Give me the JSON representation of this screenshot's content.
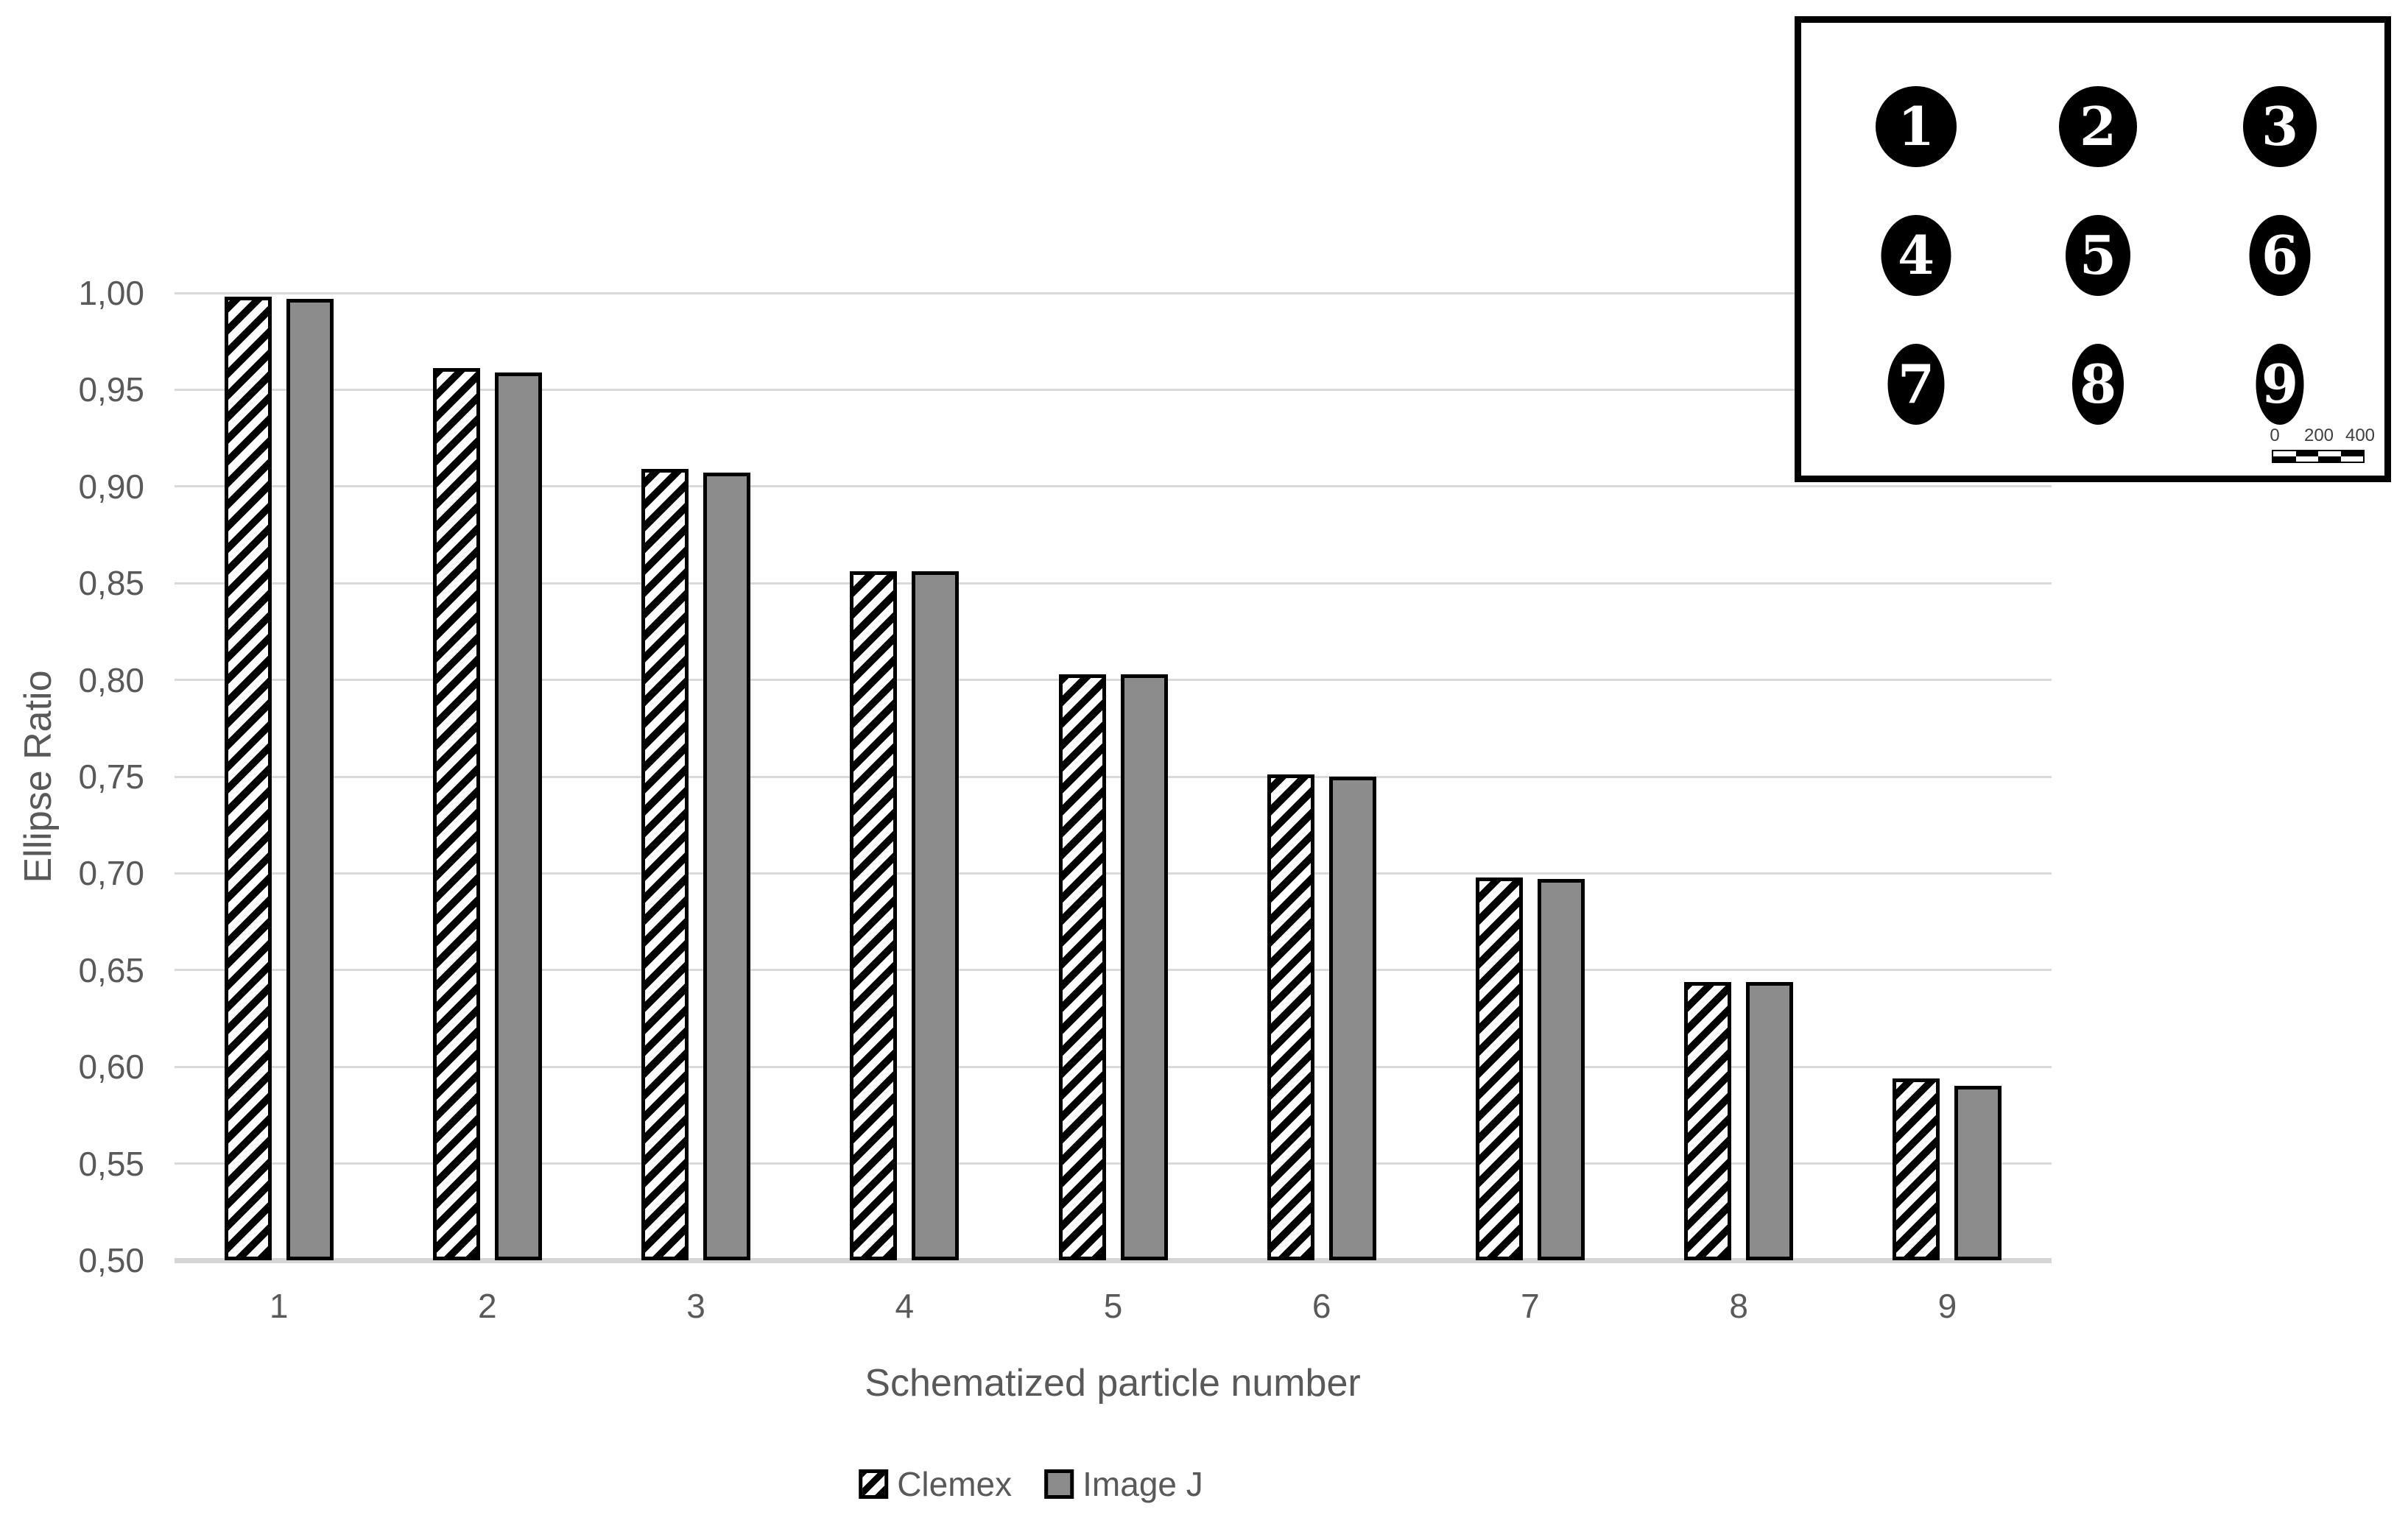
{
  "chart_data": {
    "type": "bar",
    "title": "",
    "categories": [
      "1",
      "2",
      "3",
      "4",
      "5",
      "6",
      "7",
      "8",
      "9"
    ],
    "series": [
      {
        "name": "Clemex",
        "pattern": "black-diagonal-hatch-on-white",
        "values": [
          0.998,
          0.961,
          0.909,
          0.856,
          0.803,
          0.751,
          0.698,
          0.644,
          0.594
        ]
      },
      {
        "name": "Image J",
        "pattern": "solid",
        "color": "#8c8c8c",
        "values": [
          0.997,
          0.959,
          0.907,
          0.856,
          0.803,
          0.75,
          0.697,
          0.644,
          0.59
        ]
      }
    ],
    "xlabel": "Schematized particle number",
    "ylabel": "Ellipse Ratio",
    "ylim": [
      0.5,
      1.0
    ],
    "ytick_step": 0.05,
    "ytick_labels": [
      "0,50",
      "0,55",
      "0,60",
      "0,65",
      "0,70",
      "0,75",
      "0,80",
      "0,85",
      "0,90",
      "0,95",
      "1,00"
    ],
    "decimal_separator": ",",
    "grid": "horizontal",
    "legend_position": "bottom-center"
  },
  "legend": {
    "items": [
      {
        "label": "Clemex",
        "swatch": "hatched"
      },
      {
        "label": "Image J",
        "swatch": "gray"
      }
    ]
  },
  "inset": {
    "description": "3x3 grid of black ellipses of decreasing width, numbered in white",
    "ellipse_labels": [
      "1",
      "2",
      "3",
      "4",
      "5",
      "6",
      "7",
      "8",
      "9"
    ],
    "ellipse_ratios": [
      1.0,
      0.96,
      0.91,
      0.86,
      0.8,
      0.75,
      0.7,
      0.64,
      0.59
    ],
    "scale_bar": {
      "labels": [
        "0",
        "200",
        "400"
      ]
    }
  },
  "colors": {
    "background": "#ffffff",
    "bar_gray": "#8c8c8c",
    "bar_outline": "#000000",
    "gridline": "#d9d9d9",
    "axis_text": "#595959",
    "inset_border": "#000000",
    "ellipse_fill": "#000000",
    "ellipse_number": "#ffffff"
  }
}
